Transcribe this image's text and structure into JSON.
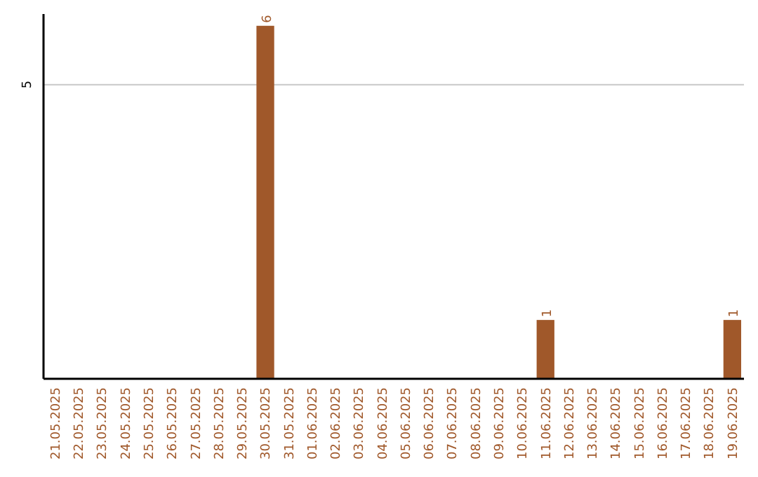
{
  "chart_data": {
    "type": "bar",
    "categories": [
      "21.05.2025",
      "22.05.2025",
      "23.05.2025",
      "24.05.2025",
      "25.05.2025",
      "26.05.2025",
      "27.05.2025",
      "28.05.2025",
      "29.05.2025",
      "30.05.2025",
      "31.05.2025",
      "01.06.2025",
      "02.06.2025",
      "03.06.2025",
      "04.06.2025",
      "05.06.2025",
      "06.06.2025",
      "07.06.2025",
      "08.06.2025",
      "09.06.2025",
      "10.06.2025",
      "11.06.2025",
      "12.06.2025",
      "13.06.2025",
      "14.06.2025",
      "15.06.2025",
      "16.06.2025",
      "17.06.2025",
      "18.06.2025",
      "19.06.2025"
    ],
    "values": [
      0,
      0,
      0,
      0,
      0,
      0,
      0,
      0,
      0,
      6,
      0,
      0,
      0,
      0,
      0,
      0,
      0,
      0,
      0,
      0,
      0,
      1,
      0,
      0,
      0,
      0,
      0,
      0,
      0,
      1
    ],
    "value_labels": [
      null,
      null,
      null,
      null,
      null,
      null,
      null,
      null,
      null,
      "6",
      null,
      null,
      null,
      null,
      null,
      null,
      null,
      null,
      null,
      null,
      null,
      "1",
      null,
      null,
      null,
      null,
      null,
      null,
      null,
      "1"
    ],
    "color": "#a0582a",
    "ylim": [
      0,
      6.2
    ],
    "yticks": [
      5
    ],
    "grid": "y"
  }
}
